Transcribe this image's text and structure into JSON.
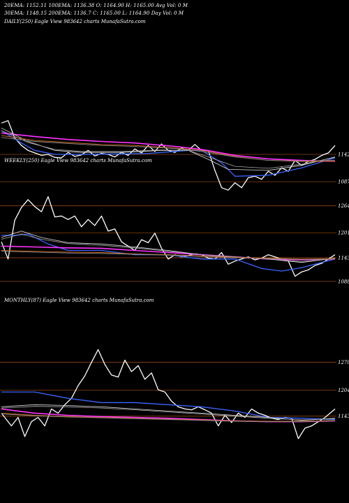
{
  "header": {
    "line1": "20EMA: 1152.11     100EMA: 1136.38     O: 1164.90     H: 1165.00     Avg Vol: 0  M",
    "line2": "30EMA: 1148.15     200EMA: 1136.7      C: 1165.00     L: 1164.90     Day Vol: 0  M"
  },
  "chart_data": [
    {
      "type": "line",
      "panel_label": "DAILY(250) Eagle  View  983642  charts MunafaSutra.com",
      "ylim": [
        1045,
        1270
      ],
      "ticks": [
        {
          "label": "1142",
          "value": 1142
        },
        {
          "label": "1087",
          "value": 1087
        }
      ],
      "gridlines": [
        1142,
        1087
      ],
      "series": [
        {
          "role": "price",
          "color": "#ffffff",
          "width": 1.3,
          "x": [
            0,
            2,
            4,
            6,
            8,
            10,
            12,
            14,
            16,
            18,
            20,
            22,
            24,
            26,
            28,
            30,
            32,
            34,
            36,
            38,
            40,
            42,
            44,
            46,
            48,
            50,
            52,
            54,
            56,
            58,
            60,
            62,
            64,
            66,
            68,
            70,
            72,
            74,
            76,
            78,
            80,
            82,
            84,
            86,
            88,
            90,
            92,
            94,
            96,
            98,
            100
          ],
          "y": [
            1205,
            1210,
            1175,
            1160,
            1150,
            1145,
            1140,
            1142,
            1136,
            1135,
            1146,
            1138,
            1141,
            1150,
            1139,
            1144,
            1142,
            1137,
            1146,
            1140,
            1153,
            1145,
            1160,
            1148,
            1163,
            1150,
            1146,
            1155,
            1150,
            1162,
            1150,
            1150,
            1110,
            1075,
            1070,
            1085,
            1075,
            1095,
            1098,
            1092,
            1108,
            1100,
            1115,
            1108,
            1130,
            1120,
            1128,
            1132,
            1140,
            1145,
            1160
          ]
        },
        {
          "role": "ema-blue",
          "color": "#3a66ff",
          "width": 1.3,
          "x": [
            0,
            6,
            10,
            16,
            24,
            36,
            44,
            52,
            56,
            60,
            66,
            70,
            80,
            90,
            100
          ],
          "y": [
            1190,
            1165,
            1150,
            1142,
            1142,
            1143,
            1144,
            1148,
            1150,
            1150,
            1125,
            1098,
            1100,
            1115,
            1135
          ]
        },
        {
          "role": "ema-magenta",
          "color": "#ff33ff",
          "width": 1.6,
          "x": [
            0,
            10,
            20,
            30,
            40,
            52,
            60,
            70,
            80,
            90,
            100
          ],
          "y": [
            1185,
            1178,
            1172,
            1168,
            1165,
            1158,
            1152,
            1140,
            1133,
            1130,
            1128
          ]
        },
        {
          "role": "ema-white-1",
          "color": "#dddddd",
          "width": 0.8,
          "x": [
            0,
            8,
            16,
            24,
            36,
            48,
            56,
            62,
            68,
            80,
            90,
            100
          ],
          "y": [
            1195,
            1168,
            1150,
            1146,
            1146,
            1150,
            1150,
            1132,
            1112,
            1110,
            1120,
            1137
          ]
        },
        {
          "role": "ema-white-2",
          "color": "#aaaaaa",
          "width": 0.8,
          "x": [
            0,
            8,
            16,
            24,
            36,
            48,
            56,
            62,
            70,
            80,
            90,
            100
          ],
          "y": [
            1190,
            1166,
            1152,
            1148,
            1148,
            1151,
            1150,
            1137,
            1118,
            1114,
            1122,
            1136
          ]
        },
        {
          "role": "ema-orange",
          "color": "#d2691e",
          "width": 0.9,
          "x": [
            0,
            10,
            20,
            30,
            40,
            52,
            60,
            70,
            80,
            90,
            100
          ],
          "y": [
            1180,
            1170,
            1166,
            1162,
            1160,
            1155,
            1150,
            1138,
            1130,
            1128,
            1128
          ]
        },
        {
          "role": "ema-grey",
          "color": "#888888",
          "width": 0.9,
          "x": [
            0,
            10,
            20,
            30,
            40,
            52,
            60,
            70,
            80,
            90,
            100
          ],
          "y": [
            1176,
            1168,
            1164,
            1160,
            1158,
            1154,
            1148,
            1137,
            1130,
            1129,
            1130
          ]
        }
      ]
    },
    {
      "type": "line",
      "panel_label": "WEEKLY(250) Eagle  View  983642  charts MunafaSutra.com",
      "ylim": [
        1060,
        1320
      ],
      "ticks": [
        {
          "label": "1264",
          "value": 1264
        },
        {
          "label": "1201",
          "value": 1201
        },
        {
          "label": "1143",
          "value": 1143
        },
        {
          "label": "1088",
          "value": 1088
        }
      ],
      "gridlines": [
        1264,
        1201,
        1143,
        1088
      ],
      "series": [
        {
          "role": "price",
          "color": "#ffffff",
          "width": 1.3,
          "x": [
            0,
            2,
            4,
            6,
            8,
            10,
            12,
            14,
            16,
            18,
            20,
            22,
            24,
            26,
            28,
            30,
            32,
            34,
            36,
            38,
            40,
            42,
            44,
            46,
            48,
            50,
            52,
            54,
            56,
            58,
            60,
            62,
            64,
            66,
            68,
            70,
            72,
            74,
            76,
            78,
            80,
            82,
            84,
            86,
            88,
            90,
            92,
            94,
            96,
            98,
            100
          ],
          "y": [
            1180,
            1140,
            1230,
            1260,
            1278,
            1262,
            1250,
            1285,
            1238,
            1240,
            1232,
            1240,
            1215,
            1232,
            1218,
            1240,
            1205,
            1210,
            1180,
            1170,
            1160,
            1185,
            1178,
            1200,
            1165,
            1140,
            1150,
            1145,
            1148,
            1152,
            1150,
            1142,
            1140,
            1155,
            1128,
            1135,
            1140,
            1145,
            1138,
            1142,
            1150,
            1145,
            1140,
            1135,
            1100,
            1110,
            1115,
            1125,
            1130,
            1140,
            1150
          ]
        },
        {
          "role": "ema-blue",
          "color": "#3a66ff",
          "width": 1.3,
          "x": [
            0,
            4,
            8,
            14,
            20,
            30,
            40,
            50,
            60,
            70,
            78,
            84,
            90,
            100
          ],
          "y": [
            1195,
            1195,
            1198,
            1175,
            1160,
            1160,
            1150,
            1150,
            1140,
            1140,
            1118,
            1112,
            1120,
            1140
          ]
        },
        {
          "role": "ema-magenta",
          "color": "#ff33ff",
          "width": 1.6,
          "x": [
            0,
            10,
            20,
            30,
            40,
            50,
            60,
            70,
            80,
            90,
            100
          ],
          "y": [
            1170,
            1168,
            1166,
            1165,
            1160,
            1155,
            1150,
            1145,
            1140,
            1138,
            1140
          ]
        },
        {
          "role": "ema-white-1",
          "color": "#dddddd",
          "width": 0.8,
          "x": [
            0,
            6,
            12,
            20,
            30,
            40,
            50,
            60,
            70,
            80,
            90,
            100
          ],
          "y": [
            1190,
            1205,
            1190,
            1178,
            1175,
            1168,
            1160,
            1150,
            1145,
            1140,
            1132,
            1142
          ]
        },
        {
          "role": "ema-white-2",
          "color": "#aaaaaa",
          "width": 0.8,
          "x": [
            0,
            6,
            12,
            20,
            30,
            40,
            50,
            60,
            70,
            80,
            90,
            100
          ],
          "y": [
            1186,
            1198,
            1186,
            1176,
            1172,
            1166,
            1158,
            1150,
            1145,
            1140,
            1134,
            1141
          ]
        },
        {
          "role": "ema-orange",
          "color": "#d2691e",
          "width": 0.9,
          "x": [
            0,
            10,
            20,
            30,
            40,
            50,
            60,
            70,
            80,
            90,
            100
          ],
          "y": [
            1160,
            1158,
            1156,
            1155,
            1152,
            1150,
            1147,
            1144,
            1142,
            1140,
            1141
          ]
        },
        {
          "role": "ema-grey",
          "color": "#888888",
          "width": 0.9,
          "x": [
            0,
            10,
            20,
            30,
            40,
            50,
            60,
            70,
            80,
            90,
            100
          ],
          "y": [
            1158,
            1156,
            1154,
            1153,
            1151,
            1149,
            1146,
            1143,
            1141,
            1139,
            1140
          ]
        }
      ]
    },
    {
      "type": "line",
      "panel_label": "MONTHLY(87) Eagle  View  983642  charts MunafaSutra.com",
      "ylim": [
        1070,
        1350
      ],
      "ticks": [
        {
          "label": "1270",
          "value": 1270
        },
        {
          "label": "1204",
          "value": 1204
        },
        {
          "label": "1143",
          "value": 1143
        }
      ],
      "gridlines": [
        1270,
        1204,
        1143
      ],
      "series": [
        {
          "role": "price",
          "color": "#ffffff",
          "width": 1.3,
          "x": [
            0,
            3,
            5,
            7,
            9,
            11,
            13,
            15,
            17,
            19,
            21,
            23,
            25,
            27,
            29,
            31,
            33,
            35,
            37,
            39,
            41,
            43,
            45,
            47,
            49,
            51,
            53,
            55,
            57,
            59,
            61,
            63,
            65,
            67,
            69,
            71,
            73,
            75,
            77,
            79,
            81,
            83,
            85,
            87,
            89,
            91,
            93,
            95,
            97,
            100
          ],
          "y": [
            1150,
            1120,
            1140,
            1095,
            1130,
            1140,
            1120,
            1160,
            1150,
            1170,
            1185,
            1215,
            1238,
            1270,
            1300,
            1265,
            1240,
            1235,
            1275,
            1248,
            1262,
            1230,
            1245,
            1205,
            1200,
            1178,
            1165,
            1160,
            1158,
            1165,
            1158,
            1150,
            1120,
            1145,
            1128,
            1150,
            1140,
            1160,
            1150,
            1145,
            1138,
            1135,
            1140,
            1138,
            1090,
            1115,
            1120,
            1130,
            1140,
            1160
          ]
        },
        {
          "role": "ema-blue",
          "color": "#3a66ff",
          "width": 1.3,
          "x": [
            0,
            10,
            20,
            30,
            40,
            50,
            60,
            70,
            80,
            90,
            100
          ],
          "y": [
            1200,
            1200,
            1185,
            1175,
            1175,
            1170,
            1165,
            1155,
            1140,
            1138,
            1135
          ]
        },
        {
          "role": "ema-magenta",
          "color": "#ff33ff",
          "width": 1.6,
          "x": [
            0,
            10,
            20,
            30,
            40,
            50,
            60,
            70,
            80,
            90,
            100
          ],
          "y": [
            1160,
            1150,
            1145,
            1142,
            1140,
            1138,
            1135,
            1132,
            1130,
            1130,
            1132
          ]
        },
        {
          "role": "ema-white-1",
          "color": "#dddddd",
          "width": 0.8,
          "x": [
            0,
            10,
            20,
            30,
            40,
            50,
            60,
            70,
            80,
            90,
            100
          ],
          "y": [
            1165,
            1170,
            1168,
            1165,
            1160,
            1155,
            1150,
            1145,
            1140,
            1133,
            1138
          ]
        },
        {
          "role": "ema-white-2",
          "color": "#aaaaaa",
          "width": 0.8,
          "x": [
            0,
            10,
            20,
            30,
            40,
            50,
            60,
            70,
            80,
            90,
            100
          ],
          "y": [
            1162,
            1166,
            1165,
            1162,
            1158,
            1153,
            1148,
            1143,
            1138,
            1134,
            1137
          ]
        },
        {
          "role": "ema-orange",
          "color": "#d2691e",
          "width": 0.9,
          "x": [
            0,
            10,
            20,
            30,
            40,
            50,
            60,
            70,
            80,
            90,
            100
          ],
          "y": [
            1150,
            1145,
            1142,
            1140,
            1138,
            1136,
            1134,
            1132,
            1131,
            1131,
            1133
          ]
        },
        {
          "role": "ema-grey",
          "color": "#888888",
          "width": 0.9,
          "x": [
            0,
            10,
            20,
            30,
            40,
            50,
            60,
            70,
            80,
            90,
            100
          ],
          "y": [
            1148,
            1144,
            1141,
            1139,
            1137,
            1135,
            1133,
            1131,
            1130,
            1130,
            1132
          ]
        }
      ]
    }
  ]
}
